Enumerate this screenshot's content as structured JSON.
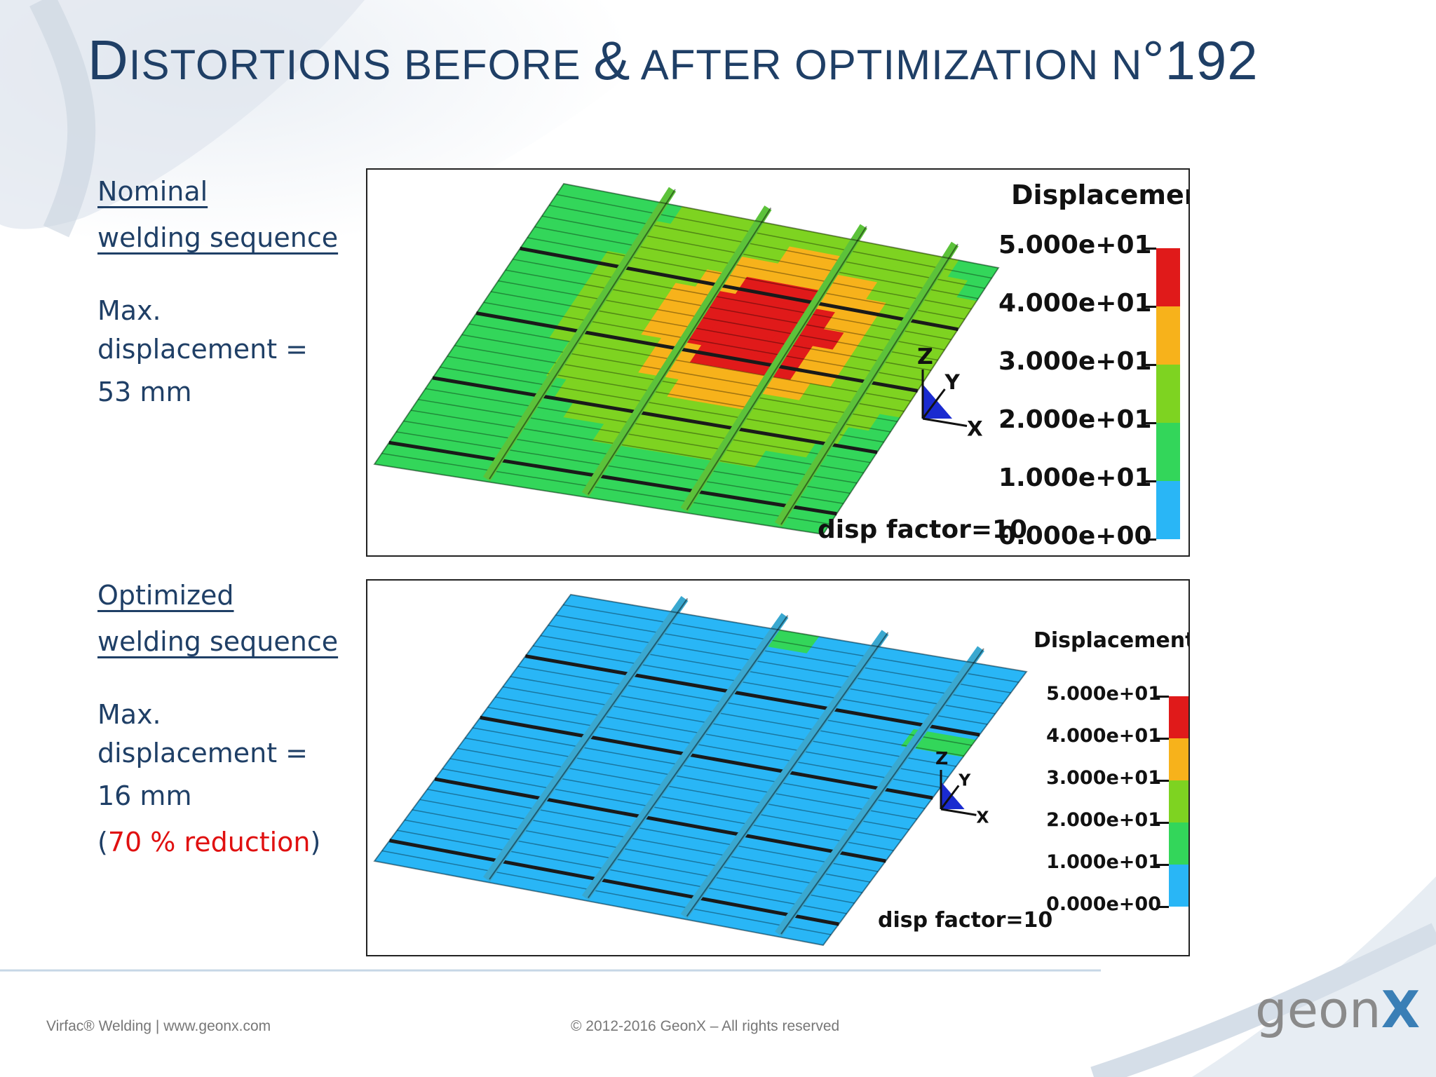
{
  "slide": {
    "title_initial": "D",
    "title_rest": "ISTORTIONS BEFORE ",
    "title_amp": "&",
    "title_after": " AFTER OPTIMIZATION N",
    "title_number": "°192"
  },
  "nominal": {
    "heading_line1": "Nominal",
    "heading_line2": "welding sequence",
    "max_line1": "Max.",
    "max_line2": "displacement =",
    "value": "53 mm"
  },
  "optimized": {
    "heading_line1": "Optimized",
    "heading_line2": "welding sequence",
    "max_line1": "Max.",
    "max_line2": "displacement =",
    "value": "16 mm",
    "reduction_open": "(",
    "reduction_text": "70 % reduction",
    "reduction_close": ")"
  },
  "colorbar": {
    "title": "Displacement",
    "ticks": [
      "5.000e+01",
      "4.000e+01",
      "3.000e+01",
      "2.000e+01",
      "1.000e+01",
      "0.000e+00"
    ],
    "colors": [
      "#e01a1a",
      "#f7b21b",
      "#7ed321",
      "#33d65a",
      "#29b6f6"
    ]
  },
  "axes": {
    "z": "Z",
    "y": "Y",
    "x": "X"
  },
  "disp_factor": "disp factor=10",
  "footer": {
    "left": "Virfac® Welding | www.geonx.com",
    "center": "© 2012-2016 GeonX – All rights reserved"
  },
  "logo": {
    "text": "geon",
    "accent": "X"
  },
  "colors": {
    "title": "#1f3f66",
    "accent_red": "#e01010"
  }
}
